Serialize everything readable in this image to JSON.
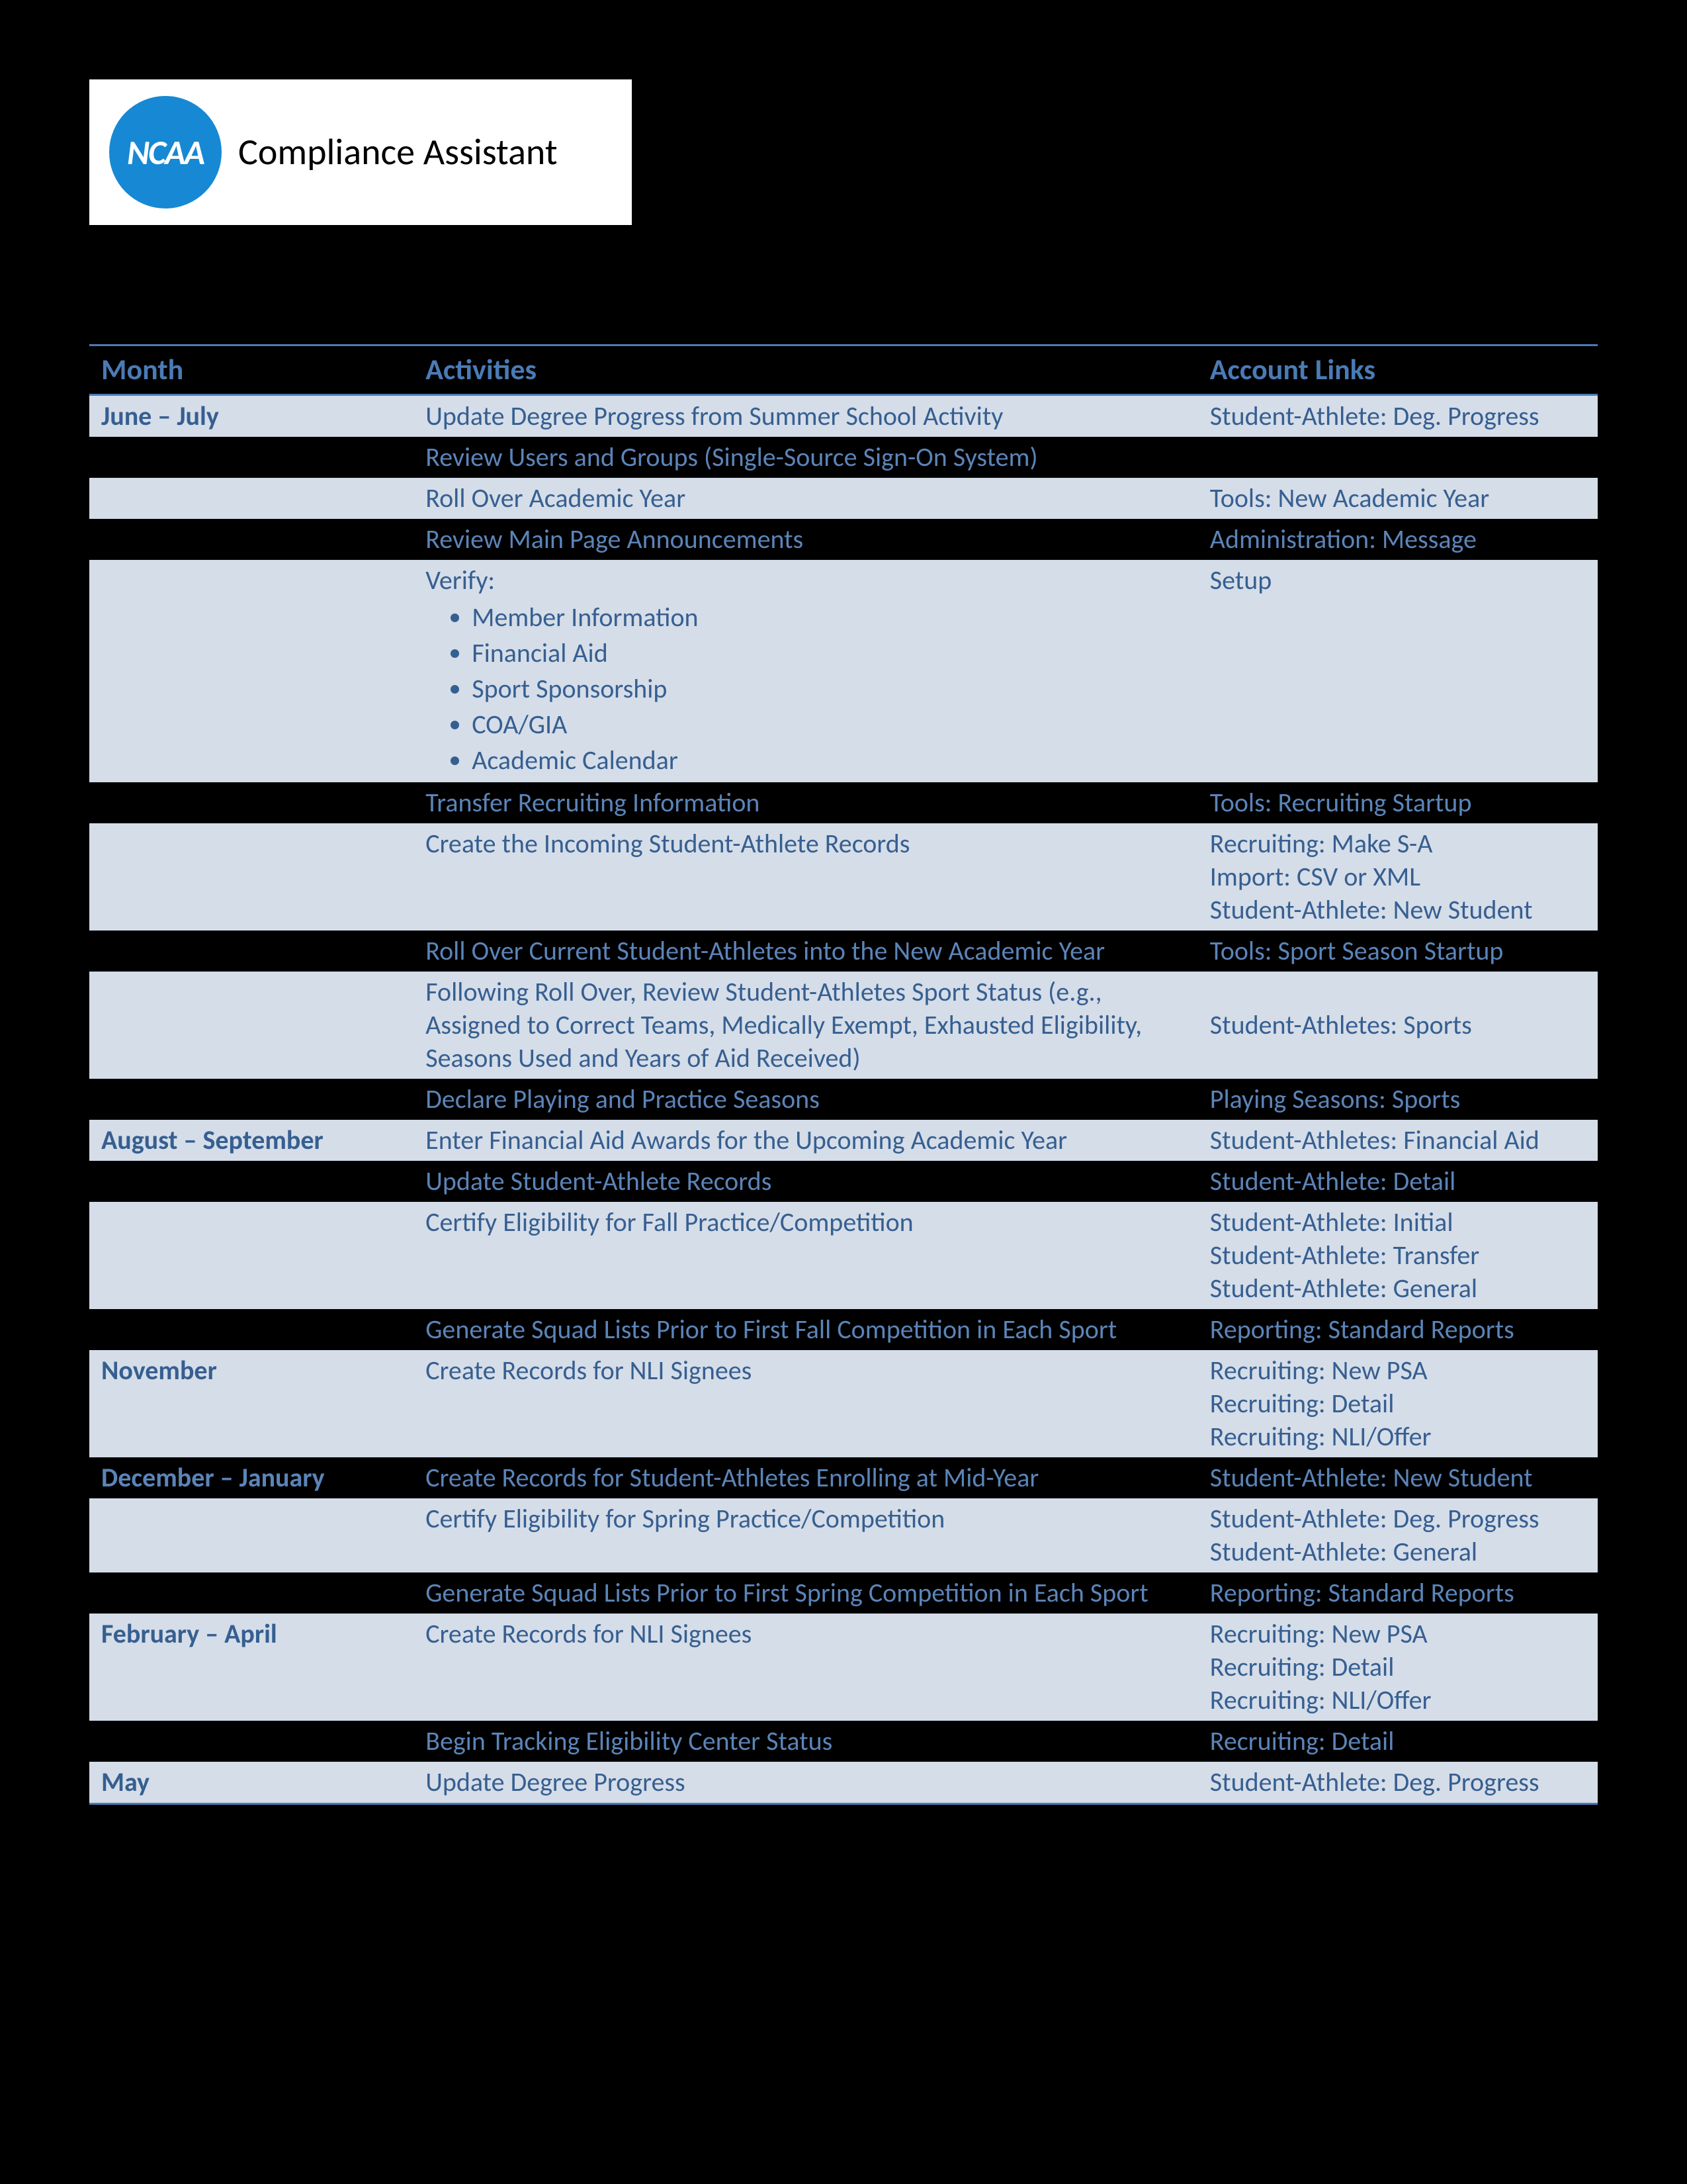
{
  "logo": {
    "badge": "NCAA",
    "label": "Compliance Assistant"
  },
  "columns": {
    "c1": "Month",
    "c2": "Activities",
    "c3": "Account Links"
  },
  "months": {
    "jun": "June – July",
    "aug": "August – September",
    "nov": "November",
    "dec": "December – January",
    "feb": "February – April",
    "may": "May"
  },
  "rows": {
    "r1": {
      "act": "Update Degree Progress from Summer School Activity",
      "link": "Student-Athlete: Deg. Progress"
    },
    "r2": {
      "act": "Review Users and Groups (Single-Source Sign-On System)",
      "link": ""
    },
    "r3": {
      "act": "Roll Over Academic Year",
      "link": "Tools:  New Academic Year"
    },
    "r4": {
      "act": "Review Main Page Announcements",
      "link": "Administration:  Message"
    },
    "r5": {
      "lead": "Verify:",
      "b1": "Member Information",
      "b2": "Financial Aid",
      "b3": "Sport Sponsorship",
      "b4": "COA/GIA",
      "b5": "Academic Calendar",
      "link": "Setup"
    },
    "r6": {
      "act": "Transfer Recruiting Information",
      "link": "Tools:  Recruiting Startup"
    },
    "r7": {
      "act": "Create the Incoming Student-Athlete Records",
      "l1": "Recruiting:  Make S-A",
      "l2": "Import:  CSV or XML",
      "l3": "Student-Athlete:  New Student"
    },
    "r8": {
      "act": "Roll Over Current Student-Athletes into the New Academic Year",
      "link": "Tools:  Sport Season Startup"
    },
    "r9": {
      "act": "Following Roll Over, Review Student-Athletes Sport Status (e.g., Assigned to Correct Teams, Medically Exempt, Exhausted Eligibility, Seasons Used and Years of Aid Received)",
      "link": "Student-Athletes:  Sports"
    },
    "r10": {
      "act": "Declare Playing and Practice Seasons",
      "link": "Playing Seasons:  Sports"
    },
    "r11": {
      "act": "Enter Financial Aid Awards for the Upcoming Academic Year",
      "link": "Student-Athletes:  Financial Aid"
    },
    "r12": {
      "act": "Update Student-Athlete Records",
      "link": "Student-Athlete:  Detail"
    },
    "r13": {
      "act": "Certify Eligibility for Fall Practice/Competition",
      "l1": "Student-Athlete:  Initial",
      "l2": "Student-Athlete:  Transfer",
      "l3": "Student-Athlete:  General"
    },
    "r14": {
      "act": "Generate Squad Lists Prior to First Fall Competition in Each Sport",
      "link": "Reporting: Standard Reports"
    },
    "r15": {
      "act": "Create Records for NLI Signees",
      "l1": "Recruiting:  New PSA",
      "l2": "Recruiting:  Detail",
      "l3": "Recruiting:  NLI/Offer"
    },
    "r16": {
      "act": "Create Records for Student-Athletes Enrolling at Mid-Year",
      "link": "Student-Athlete: New Student"
    },
    "r17": {
      "act": "Certify Eligibility for Spring Practice/Competition",
      "l1": "Student-Athlete:  Deg. Progress",
      "l2": "Student-Athlete:  General"
    },
    "r18": {
      "act": "Generate Squad Lists Prior to First Spring Competition in Each Sport",
      "link": "Reporting:  Standard Reports"
    },
    "r19": {
      "act": "Create Records for NLI Signees",
      "l1": "Recruiting:  New PSA",
      "l2": "Recruiting:  Detail",
      "l3": "Recruiting:  NLI/Offer"
    },
    "r20": {
      "act": "Begin Tracking Eligibility Center Status",
      "link": "Recruiting:  Detail"
    },
    "r21": {
      "act": "Update Degree Progress",
      "link": "Student-Athlete:  Deg. Progress"
    }
  }
}
